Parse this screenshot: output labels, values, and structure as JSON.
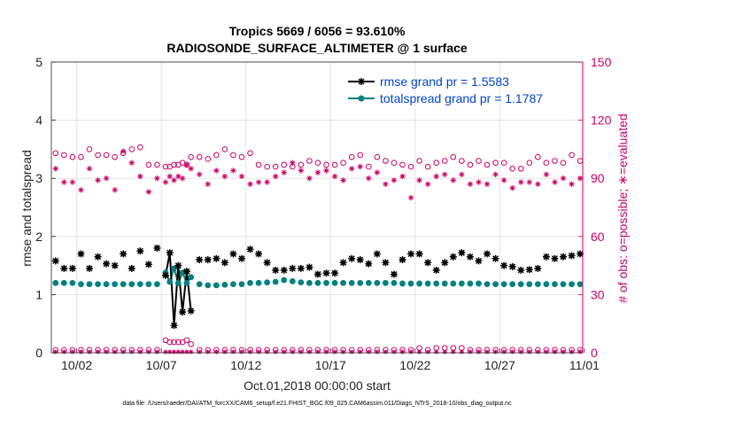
{
  "chart_data": {
    "type": "scatter",
    "title": "Tropics 5669 / 6056 = 93.610%",
    "subtitle": "RADIOSONDE_SURFACE_ALTIMETER @ 1 surface",
    "xlabel": "Oct.01,2018 00:00:00 start",
    "ylabel": "rmse and totalspread",
    "ylabel_right": "# of obs: o=possible; ∗=evaluated",
    "footnote": "data file: /Users/raeder/DAI/ATM_forcXX/CAM6_setup/f.e21.FHIST_BGC.f09_025.CAM6assim.011/Diags_NTrS_2018-10/obs_diag_output.nc",
    "xlim": [
      0.5,
      31.9
    ],
    "ylim": [
      0,
      5
    ],
    "ylim_right": [
      0,
      150
    ],
    "x_ticks": [
      {
        "value": 2,
        "label": "10/02"
      },
      {
        "value": 7,
        "label": "10/07"
      },
      {
        "value": 12,
        "label": "10/12"
      },
      {
        "value": 17,
        "label": "10/17"
      },
      {
        "value": 22,
        "label": "10/22"
      },
      {
        "value": 27,
        "label": "10/27"
      },
      {
        "value": 32,
        "label": "11/01"
      }
    ],
    "y_ticks": [
      "0",
      "1",
      "2",
      "3",
      "4",
      "5"
    ],
    "y_ticks_right": [
      "0",
      "30",
      "60",
      "90",
      "120",
      "150"
    ],
    "grid": true,
    "legend_position": "top-right",
    "colors": {
      "rmse": "#000000",
      "spread": "#008080",
      "counts": "#cc0066",
      "text": "#0044cc"
    },
    "x": [
      0.75,
      1.25,
      1.75,
      2.25,
      2.75,
      3.25,
      3.75,
      4.25,
      4.75,
      5.25,
      5.75,
      6.25,
      6.75,
      7.25,
      7.5,
      7.75,
      8.0,
      8.25,
      8.5,
      8.75,
      9.25,
      9.75,
      10.25,
      10.75,
      11.25,
      11.75,
      12.25,
      12.75,
      13.25,
      13.75,
      14.25,
      14.75,
      15.25,
      15.75,
      16.25,
      16.75,
      17.25,
      17.75,
      18.25,
      18.75,
      19.25,
      19.75,
      20.25,
      20.75,
      21.25,
      21.75,
      22.25,
      22.75,
      23.25,
      23.75,
      24.25,
      24.75,
      25.25,
      25.75,
      26.25,
      26.75,
      27.25,
      27.75,
      28.25,
      28.75,
      29.25,
      29.75,
      30.25,
      30.75,
      31.25,
      31.75
    ],
    "series": [
      {
        "name": "rmse",
        "legend": "rmse grand pr = 1.5583",
        "values": [
          1.58,
          1.45,
          1.45,
          1.7,
          1.45,
          1.65,
          1.53,
          1.5,
          1.7,
          1.45,
          1.75,
          1.52,
          1.8,
          1.33,
          1.72,
          0.47,
          1.5,
          0.7,
          1.4,
          0.72,
          1.6,
          1.6,
          1.62,
          1.55,
          1.7,
          1.62,
          1.78,
          1.7,
          1.55,
          1.42,
          1.42,
          1.45,
          1.45,
          1.47,
          1.35,
          1.37,
          1.37,
          1.55,
          1.62,
          1.6,
          1.53,
          1.7,
          1.55,
          1.35,
          1.6,
          1.7,
          1.7,
          1.55,
          1.42,
          1.55,
          1.65,
          1.72,
          1.65,
          1.58,
          1.7,
          1.62,
          1.5,
          1.48,
          1.42,
          1.43,
          1.45,
          1.65,
          1.62,
          1.65,
          1.67,
          1.7
        ]
      },
      {
        "name": "totalspread",
        "legend": "totalspread grand pr = 1.1787",
        "values": [
          1.2,
          1.2,
          1.2,
          1.18,
          1.18,
          1.18,
          1.18,
          1.18,
          1.18,
          1.18,
          1.18,
          1.18,
          1.18,
          1.38,
          1.22,
          1.45,
          1.2,
          1.38,
          1.2,
          1.3,
          1.18,
          1.16,
          1.16,
          1.17,
          1.18,
          1.18,
          1.2,
          1.2,
          1.21,
          1.22,
          1.25,
          1.23,
          1.21,
          1.2,
          1.2,
          1.2,
          1.2,
          1.2,
          1.2,
          1.2,
          1.2,
          1.2,
          1.2,
          1.2,
          1.19,
          1.19,
          1.19,
          1.19,
          1.19,
          1.19,
          1.19,
          1.19,
          1.19,
          1.19,
          1.18,
          1.18,
          1.18,
          1.18,
          1.18,
          1.18,
          1.18,
          1.18,
          1.18,
          1.18,
          1.18,
          1.18
        ]
      },
      {
        "name": "obs_possible",
        "axis": "right",
        "values": [
          103,
          102,
          101,
          101,
          105,
          102,
          102,
          101,
          103,
          105,
          106,
          97,
          97,
          96,
          96,
          97,
          97,
          98,
          97,
          101,
          101,
          100,
          102,
          105,
          102,
          101,
          103,
          97,
          96,
          96,
          97,
          96,
          97,
          99,
          98,
          97,
          97,
          98,
          101,
          102,
          96,
          101,
          99,
          98,
          97,
          96,
          99,
          96,
          98,
          99,
          101,
          99,
          97,
          99,
          97,
          98,
          98,
          95,
          95,
          98,
          101,
          98,
          99,
          98,
          102,
          99
        ]
      },
      {
        "name": "obs_evaluated",
        "axis": "right",
        "values": [
          95,
          88,
          88,
          84,
          95,
          89,
          90,
          84,
          104,
          98,
          91,
          83,
          90,
          88,
          91,
          89,
          91,
          90,
          97,
          95,
          92,
          87,
          94,
          91,
          94,
          91,
          87,
          88,
          88,
          91,
          93,
          98,
          94,
          90,
          93,
          94,
          91,
          89,
          95,
          96,
          90,
          93,
          87,
          89,
          91,
          80,
          89,
          87,
          91,
          92,
          89,
          92,
          87,
          88,
          87,
          92,
          89,
          85,
          88,
          88,
          87,
          92,
          88,
          90,
          87,
          90
        ]
      },
      {
        "name": "obs_possible_low",
        "axis": "right",
        "values": [
          1,
          1,
          1,
          1,
          1,
          1,
          1,
          1,
          1,
          1,
          1,
          1,
          1,
          6,
          5,
          5,
          5,
          5,
          6,
          4,
          1,
          1,
          1,
          1,
          1,
          1,
          1,
          1,
          1,
          1,
          1,
          1,
          1,
          1,
          1,
          1,
          1,
          1,
          1,
          1,
          1,
          1,
          1,
          1,
          1,
          1,
          2,
          1,
          2,
          2,
          2,
          2,
          1,
          1,
          1,
          1,
          1,
          1,
          1,
          1,
          1,
          1,
          1,
          1,
          1,
          1
        ]
      },
      {
        "name": "obs_evaluated_low",
        "axis": "right",
        "values": [
          0,
          0,
          0,
          0,
          0,
          0,
          0,
          0,
          0,
          0,
          0,
          0,
          0,
          0,
          0,
          0,
          0,
          0,
          0,
          0,
          0,
          0,
          0,
          0,
          0,
          0,
          0,
          0,
          0,
          0,
          0,
          0,
          0,
          0,
          0,
          0,
          0,
          0,
          0,
          0,
          0,
          0,
          0,
          0,
          0,
          0,
          0,
          0,
          0,
          0,
          0,
          0,
          0,
          0,
          0,
          0,
          0,
          0,
          0,
          0,
          0,
          0,
          0,
          0,
          0,
          0
        ]
      }
    ]
  }
}
